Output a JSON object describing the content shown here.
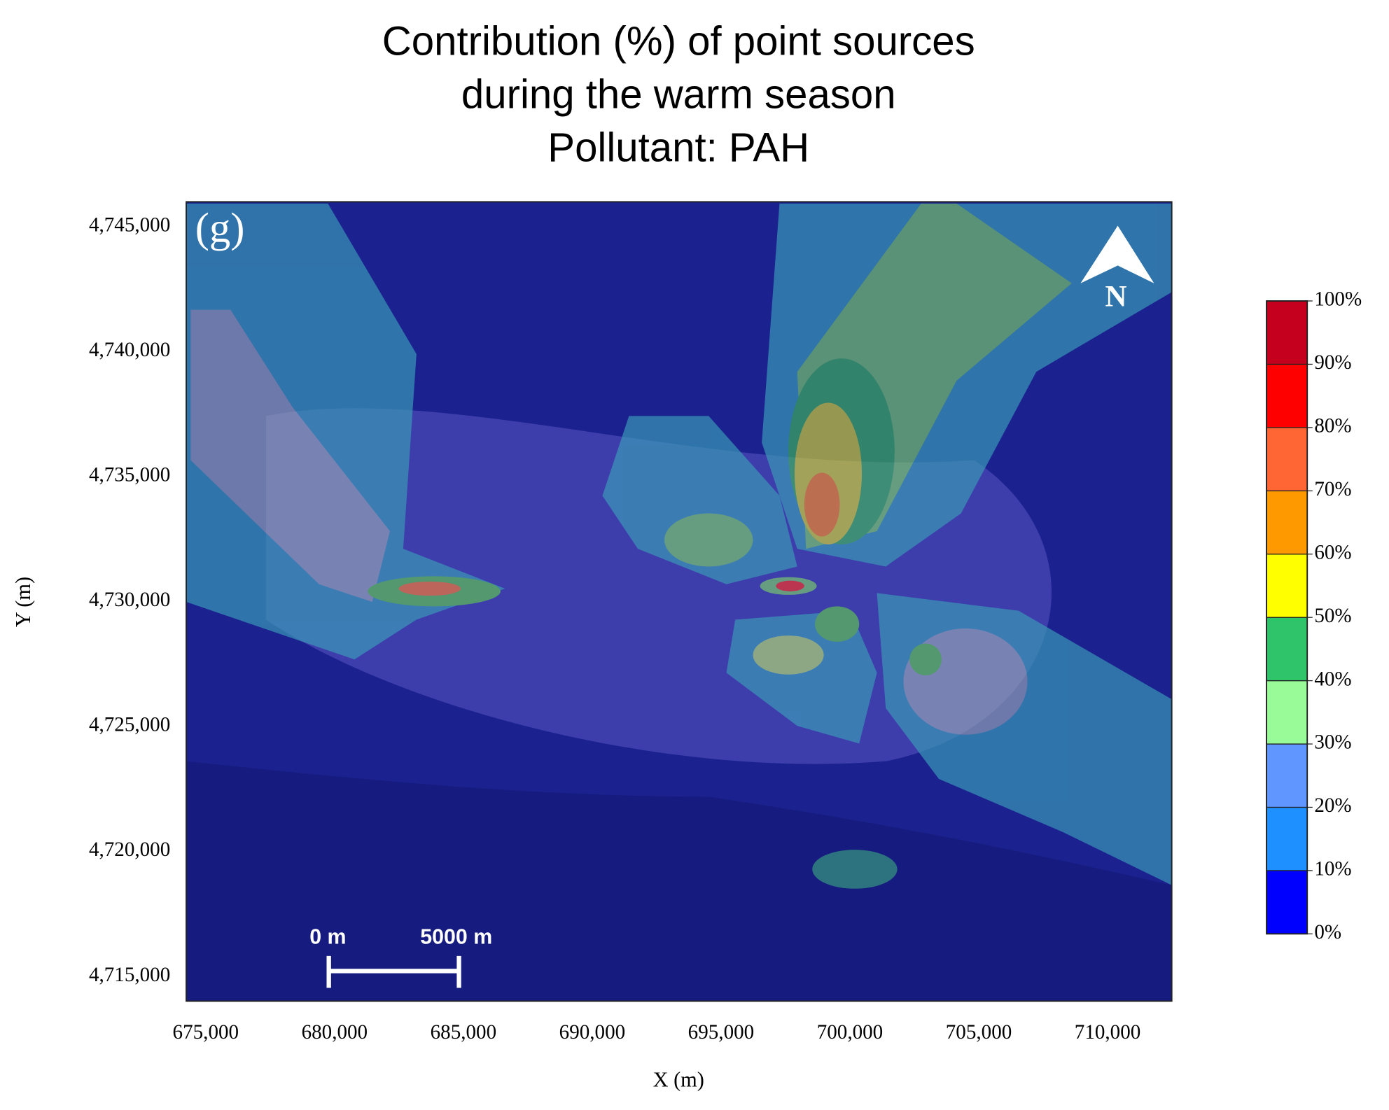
{
  "chart_data": {
    "type": "contour-map",
    "title": [
      "Contribution (%) of point sources",
      "during the warm season",
      "Pollutant: PAH"
    ],
    "panel_label": "(g)",
    "north_label": "N",
    "scale_bar_labels": [
      "0 m",
      "5000 m"
    ],
    "x_label": "X (m)",
    "y_label": "Y (m)",
    "xlim": [
      674245,
      712490
    ],
    "ylim": [
      4714010,
      4745990
    ],
    "xticks": [
      {
        "value": 675000,
        "label": "675,000"
      },
      {
        "value": 680000,
        "label": "680,000"
      },
      {
        "value": 685000,
        "label": "685,000"
      },
      {
        "value": 690000,
        "label": "690,000"
      },
      {
        "value": 695000,
        "label": "695,000"
      },
      {
        "value": 700000,
        "label": "700,000"
      },
      {
        "value": 705000,
        "label": "705,000"
      },
      {
        "value": 710000,
        "label": "710,000"
      }
    ],
    "yticks": [
      {
        "value": 4715000,
        "label": "4,715,000"
      },
      {
        "value": 4720000,
        "label": "4,720,000"
      },
      {
        "value": 4725000,
        "label": "4,725,000"
      },
      {
        "value": 4730000,
        "label": "4,730,000"
      },
      {
        "value": 4735000,
        "label": "4,735,000"
      },
      {
        "value": 4740000,
        "label": "4,740,000"
      },
      {
        "value": 4745000,
        "label": "4,745,000"
      }
    ],
    "colorbar": {
      "ticks": [
        {
          "value": 0,
          "label": "0%"
        },
        {
          "value": 10,
          "label": "10%"
        },
        {
          "value": 20,
          "label": "20%"
        },
        {
          "value": 30,
          "label": "30%"
        },
        {
          "value": 40,
          "label": "40%"
        },
        {
          "value": 50,
          "label": "50%"
        },
        {
          "value": 60,
          "label": "60%"
        },
        {
          "value": 70,
          "label": "70%"
        },
        {
          "value": 80,
          "label": "80%"
        },
        {
          "value": 90,
          "label": "90%"
        },
        {
          "value": 100,
          "label": "100%"
        }
      ],
      "colors": [
        "#0000ff",
        "#1e90ff",
        "#5f96ff",
        "#98fb98",
        "#2fc46a",
        "#ffff00",
        "#ff9900",
        "#ff6633",
        "#ff0000",
        "#c4001e"
      ]
    }
  }
}
